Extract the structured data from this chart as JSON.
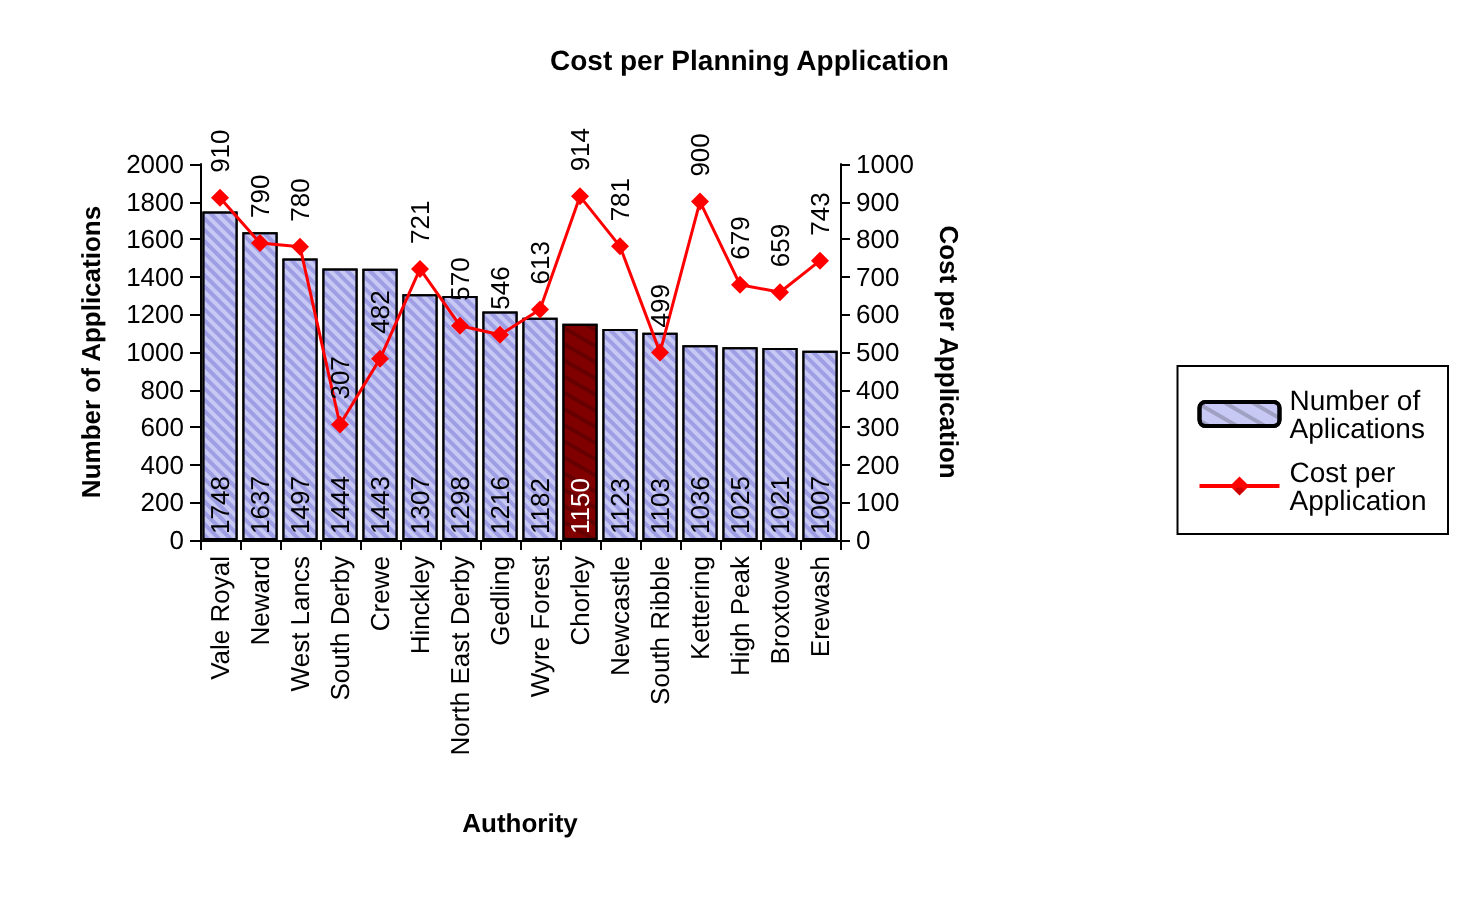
{
  "chart_data": {
    "type": "bar",
    "title": "Cost per Planning Application",
    "xlabel": "Authority",
    "ylabel": "Number of Applications",
    "y2label": "Cost per Application",
    "categories": [
      "Vale Royal",
      "Neward",
      "West Lancs",
      "South Derby",
      "Crewe",
      "Hinckley",
      "North East Derby",
      "Gedling",
      "Wyre Forest",
      "Chorley",
      "Newcastle",
      "South Ribble",
      "Kettering",
      "High Peak",
      "Broxtowe",
      "Erewash"
    ],
    "series": [
      {
        "name": "Number of Aplications",
        "color": "#c8c8f4",
        "colors": [
          "#c8c8f4",
          "#c8c8f4",
          "#c8c8f4",
          "#c8c8f4",
          "#c8c8f4",
          "#c8c8f4",
          "#c8c8f4",
          "#c8c8f4",
          "#c8c8f4",
          "#800000",
          "#c8c8f4",
          "#c8c8f4",
          "#c8c8f4",
          "#c8c8f4",
          "#c8c8f4",
          "#c8c8f4"
        ],
        "values": [
          1748,
          1637,
          1497,
          1444,
          1443,
          1307,
          1298,
          1216,
          1182,
          1150,
          1123,
          1103,
          1036,
          1025,
          1021,
          1007
        ]
      },
      {
        "name": "Cost per Application",
        "type": "line",
        "axis": "y2",
        "color": "#ff0000",
        "values": [
          910,
          790,
          780,
          307,
          482,
          721,
          570,
          546,
          613,
          914,
          781,
          499,
          900,
          679,
          659,
          743
        ]
      }
    ],
    "ylim": [
      0,
      2000
    ],
    "yticks": [
      0,
      200,
      400,
      600,
      800,
      1000,
      1200,
      1400,
      1600,
      1800,
      2000
    ],
    "y2lim": [
      0,
      1000
    ],
    "y2ticks": [
      0,
      100,
      200,
      300,
      400,
      500,
      600,
      700,
      800,
      900,
      1000
    ],
    "data_labels": true,
    "grid": false,
    "legend": "right",
    "marker": "diamond",
    "line_style": "solid"
  }
}
